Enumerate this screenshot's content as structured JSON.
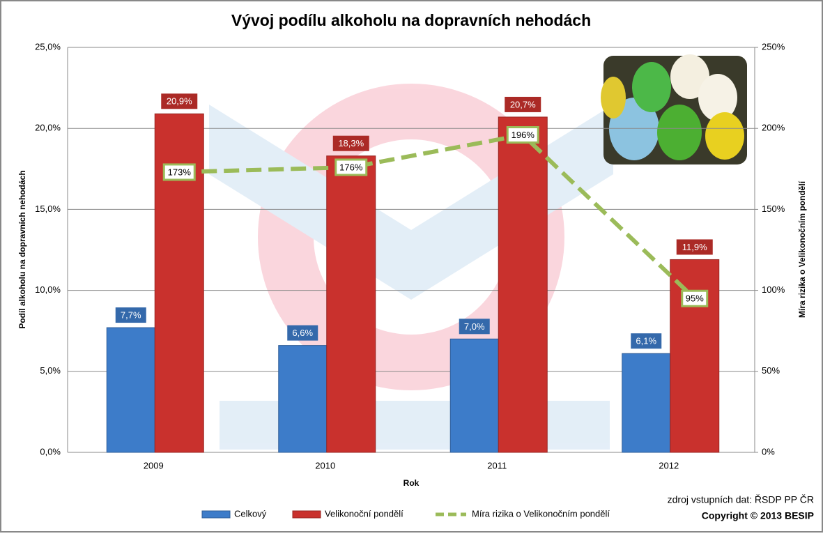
{
  "chart_data": {
    "type": "bar",
    "title": "Vývoj podílu alkoholu na dopravních nehodách",
    "y_label": "Podíl alkoholu na dopravních nehodách",
    "y2_label": "Míra rizika o Velikonočním pondělí",
    "x_label": "Rok",
    "categories": [
      "2009",
      "2010",
      "2011",
      "2012"
    ],
    "series": [
      {
        "name": "Celkový",
        "color": "#3d7cc9",
        "values": [
          7.7,
          6.6,
          7.0,
          6.1
        ],
        "value_labels": [
          "7,7%",
          "6,6%",
          "7,0%",
          "6,1%"
        ]
      },
      {
        "name": "Velikonoční pondělí",
        "color": "#c9312d",
        "values": [
          20.9,
          18.3,
          20.7,
          11.9
        ],
        "value_labels": [
          "20,9%",
          "18,3%",
          "20,7%",
          "11,9%"
        ]
      },
      {
        "name": "Míra rizika o Velikonočním pondělí",
        "type": "line",
        "axis": "y2",
        "color": "#9bbb59",
        "values": [
          173,
          176,
          196,
          95
        ],
        "value_labels": [
          "173%",
          "176%",
          "196%",
          "95%"
        ]
      }
    ],
    "ylim": [
      0,
      25
    ],
    "yticks": [
      {
        "value": 0,
        "label": "0,0%"
      },
      {
        "value": 5,
        "label": "5,0%"
      },
      {
        "value": 10,
        "label": "10,0%"
      },
      {
        "value": 15,
        "label": "15,0%"
      },
      {
        "value": 20,
        "label": "20,0%"
      },
      {
        "value": 25,
        "label": "25,0%"
      }
    ],
    "y2lim": [
      0,
      250
    ],
    "y2ticks": [
      {
        "value": 0,
        "label": "0%"
      },
      {
        "value": 50,
        "label": "50%"
      },
      {
        "value": 100,
        "label": "100%"
      },
      {
        "value": 150,
        "label": "150%"
      },
      {
        "value": 200,
        "label": "200%"
      },
      {
        "value": 250,
        "label": "250%"
      }
    ],
    "grid": true,
    "legend": "bottom",
    "annotations": [
      "zdroj vstupních dat: ŘSDP PP ČR",
      "Copyright © 2013 BESIP"
    ]
  }
}
